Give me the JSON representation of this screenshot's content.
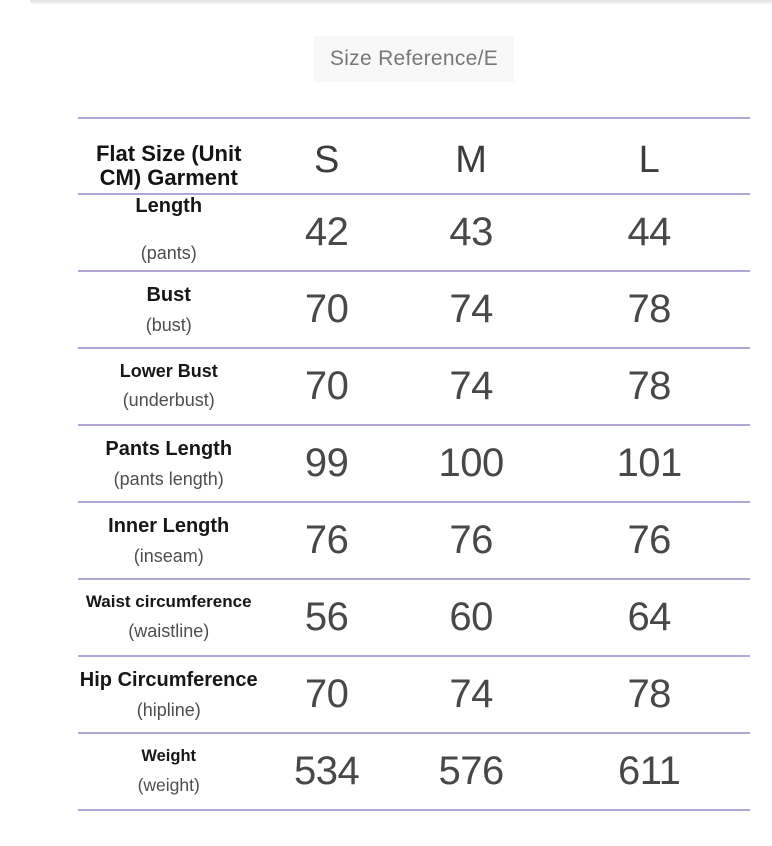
{
  "page": {
    "title": "Size Reference/E"
  },
  "table": {
    "header": {
      "label": "Flat Size (Unit CM) Garment",
      "columns": [
        "S",
        "M",
        "L"
      ]
    },
    "rows": [
      {
        "name": "Length",
        "sub": "(pants)",
        "values": [
          "42",
          "43",
          "44"
        ]
      },
      {
        "name": "Bust",
        "sub": "(bust)",
        "values": [
          "70",
          "74",
          "78"
        ]
      },
      {
        "name": "Lower Bust",
        "sub": "(underbust)",
        "values": [
          "70",
          "74",
          "78"
        ]
      },
      {
        "name": "Pants Length",
        "sub": "(pants length)",
        "values": [
          "99",
          "100",
          "101"
        ]
      },
      {
        "name": "Inner Length",
        "sub": "(inseam)",
        "values": [
          "76",
          "76",
          "76"
        ]
      },
      {
        "name": "Waist circumference",
        "sub": "(waistline)",
        "values": [
          "56",
          "60",
          "64"
        ]
      },
      {
        "name": "Hip Circumference",
        "sub": "(hipline)",
        "values": [
          "70",
          "74",
          "78"
        ]
      },
      {
        "name": "Weight",
        "sub": "(weight)",
        "values": [
          "534",
          "576",
          "611"
        ]
      }
    ]
  },
  "colors": {
    "divider": "#b3a6d7",
    "title_text": "#787878",
    "title_background": "#f8f8f8",
    "label_text": "#171717",
    "sublabel_text": "#4e4e4e",
    "value_text": "#48484a",
    "background": "#ffffff"
  }
}
